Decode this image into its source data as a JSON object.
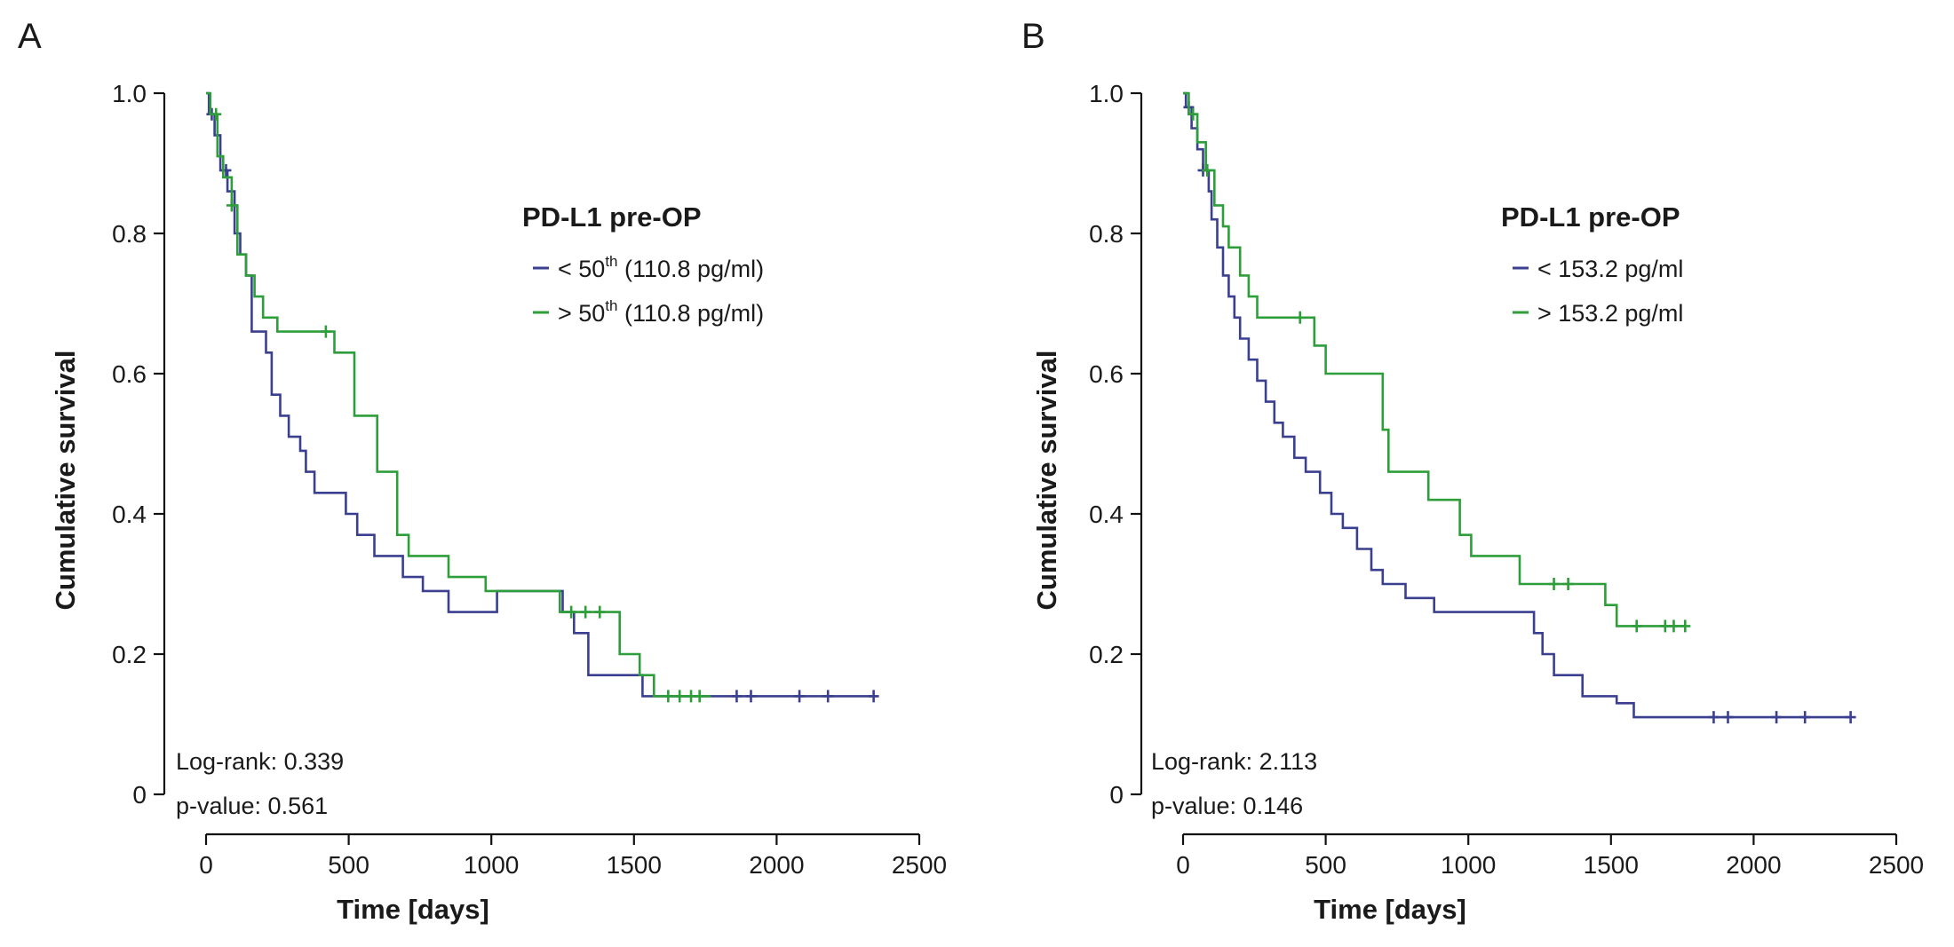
{
  "chart_data": [
    {
      "type": "line",
      "panel_label": "A",
      "ylabel": "Cumulative survival",
      "xlabel": "Time [days]",
      "xlim": [
        0,
        2500
      ],
      "ylim": [
        0,
        1.0
      ],
      "x_ticks": [
        0,
        500,
        1000,
        1500,
        2000,
        2500
      ],
      "y_ticks": [
        {
          "value": 0,
          "label": "0"
        },
        {
          "value": 0.2,
          "label": "0.2"
        },
        {
          "value": 0.4,
          "label": "0.4"
        },
        {
          "value": 0.6,
          "label": "0.6"
        },
        {
          "value": 0.8,
          "label": "0.8"
        },
        {
          "value": 1.0,
          "label": "1.0"
        }
      ],
      "legend": {
        "title": "PD-L1 pre-OP",
        "placement": "top-right"
      },
      "stats": {
        "log_rank": "Log-rank: 0.339",
        "p_value": "p-value: 0.561"
      },
      "series": [
        {
          "name": "low",
          "legend_main": "< 50",
          "legend_sup": "th",
          "legend_rest": " (110.8 pg/ml)",
          "color": "#3a3f8f",
          "steps": [
            [
              0,
              1.0
            ],
            [
              10,
              0.97
            ],
            [
              30,
              0.94
            ],
            [
              50,
              0.89
            ],
            [
              75,
              0.86
            ],
            [
              100,
              0.8
            ],
            [
              120,
              0.77
            ],
            [
              140,
              0.74
            ],
            [
              160,
              0.66
            ],
            [
              210,
              0.63
            ],
            [
              230,
              0.57
            ],
            [
              260,
              0.54
            ],
            [
              290,
              0.51
            ],
            [
              330,
              0.49
            ],
            [
              350,
              0.46
            ],
            [
              380,
              0.43
            ],
            [
              490,
              0.4
            ],
            [
              530,
              0.37
            ],
            [
              590,
              0.34
            ],
            [
              690,
              0.31
            ],
            [
              760,
              0.29
            ],
            [
              850,
              0.26
            ],
            [
              1000,
              0.26
            ],
            [
              1020,
              0.29
            ],
            [
              1250,
              0.26
            ],
            [
              1290,
              0.23
            ],
            [
              1340,
              0.17
            ],
            [
              1460,
              0.17
            ],
            [
              1530,
              0.14
            ],
            [
              2350,
              0.14
            ]
          ],
          "censored": [
            [
              20,
              0.97
            ],
            [
              70,
              0.89
            ],
            [
              1860,
              0.14
            ],
            [
              1910,
              0.14
            ],
            [
              2080,
              0.14
            ],
            [
              2180,
              0.14
            ],
            [
              2340,
              0.14
            ]
          ]
        },
        {
          "name": "high",
          "legend_main": "> 50",
          "legend_sup": "th",
          "legend_rest": " (110.8 pg/ml)",
          "color": "#2e9e3a",
          "steps": [
            [
              0,
              1.0
            ],
            [
              15,
              0.97
            ],
            [
              40,
              0.91
            ],
            [
              60,
              0.88
            ],
            [
              90,
              0.84
            ],
            [
              110,
              0.77
            ],
            [
              140,
              0.74
            ],
            [
              170,
              0.71
            ],
            [
              200,
              0.68
            ],
            [
              250,
              0.66
            ],
            [
              430,
              0.66
            ],
            [
              450,
              0.63
            ],
            [
              520,
              0.54
            ],
            [
              600,
              0.46
            ],
            [
              670,
              0.37
            ],
            [
              710,
              0.34
            ],
            [
              850,
              0.31
            ],
            [
              980,
              0.29
            ],
            [
              1200,
              0.29
            ],
            [
              1240,
              0.26
            ],
            [
              1400,
              0.26
            ],
            [
              1450,
              0.2
            ],
            [
              1520,
              0.17
            ],
            [
              1570,
              0.14
            ],
            [
              1770,
              0.14
            ]
          ],
          "censored": [
            [
              35,
              0.97
            ],
            [
              90,
              0.84
            ],
            [
              420,
              0.66
            ],
            [
              1280,
              0.26
            ],
            [
              1330,
              0.26
            ],
            [
              1380,
              0.26
            ],
            [
              1620,
              0.14
            ],
            [
              1660,
              0.14
            ],
            [
              1700,
              0.14
            ],
            [
              1730,
              0.14
            ]
          ]
        }
      ]
    },
    {
      "type": "line",
      "panel_label": "B",
      "ylabel": "Cumulative survival",
      "xlabel": "Time [days]",
      "xlim": [
        0,
        2500
      ],
      "ylim": [
        0,
        1.0
      ],
      "x_ticks": [
        0,
        500,
        1000,
        1500,
        2000,
        2500
      ],
      "y_ticks": [
        {
          "value": 0,
          "label": "0"
        },
        {
          "value": 0.2,
          "label": "0.2"
        },
        {
          "value": 0.4,
          "label": "0.4"
        },
        {
          "value": 0.6,
          "label": "0.6"
        },
        {
          "value": 0.8,
          "label": "0.8"
        },
        {
          "value": 1.0,
          "label": "1.0"
        }
      ],
      "legend": {
        "title": "PD-L1 pre-OP",
        "placement": "top-right"
      },
      "stats": {
        "log_rank": "Log-rank: 2.113",
        "p_value": "p-value: 0.146"
      },
      "series": [
        {
          "name": "low",
          "legend_main": "< 153.2 pg/ml",
          "legend_sup": "",
          "legend_rest": "",
          "color": "#3a3f8f",
          "steps": [
            [
              0,
              1.0
            ],
            [
              10,
              0.98
            ],
            [
              30,
              0.95
            ],
            [
              50,
              0.92
            ],
            [
              70,
              0.89
            ],
            [
              90,
              0.86
            ],
            [
              100,
              0.82
            ],
            [
              120,
              0.78
            ],
            [
              140,
              0.74
            ],
            [
              160,
              0.71
            ],
            [
              180,
              0.68
            ],
            [
              200,
              0.65
            ],
            [
              230,
              0.62
            ],
            [
              260,
              0.59
            ],
            [
              290,
              0.56
            ],
            [
              320,
              0.53
            ],
            [
              350,
              0.51
            ],
            [
              390,
              0.48
            ],
            [
              430,
              0.46
            ],
            [
              480,
              0.43
            ],
            [
              520,
              0.4
            ],
            [
              560,
              0.38
            ],
            [
              610,
              0.35
            ],
            [
              660,
              0.32
            ],
            [
              700,
              0.3
            ],
            [
              780,
              0.28
            ],
            [
              880,
              0.26
            ],
            [
              1000,
              0.26
            ],
            [
              1230,
              0.23
            ],
            [
              1260,
              0.2
            ],
            [
              1300,
              0.17
            ],
            [
              1400,
              0.14
            ],
            [
              1480,
              0.14
            ],
            [
              1520,
              0.13
            ],
            [
              1580,
              0.11
            ],
            [
              2340,
              0.11
            ]
          ],
          "censored": [
            [
              20,
              0.98
            ],
            [
              70,
              0.89
            ],
            [
              1860,
              0.11
            ],
            [
              1910,
              0.11
            ],
            [
              2080,
              0.11
            ],
            [
              2180,
              0.11
            ],
            [
              2340,
              0.11
            ]
          ]
        },
        {
          "name": "high",
          "legend_main": "> 153.2 pg/ml",
          "legend_sup": "",
          "legend_rest": "",
          "color": "#2e9e3a",
          "steps": [
            [
              0,
              1.0
            ],
            [
              20,
              0.97
            ],
            [
              50,
              0.93
            ],
            [
              80,
              0.89
            ],
            [
              110,
              0.84
            ],
            [
              140,
              0.81
            ],
            [
              160,
              0.78
            ],
            [
              200,
              0.74
            ],
            [
              230,
              0.71
            ],
            [
              260,
              0.68
            ],
            [
              440,
              0.68
            ],
            [
              460,
              0.64
            ],
            [
              500,
              0.6
            ],
            [
              700,
              0.52
            ],
            [
              720,
              0.46
            ],
            [
              860,
              0.42
            ],
            [
              970,
              0.37
            ],
            [
              1010,
              0.34
            ],
            [
              1180,
              0.3
            ],
            [
              1330,
              0.3
            ],
            [
              1480,
              0.27
            ],
            [
              1520,
              0.24
            ],
            [
              1760,
              0.24
            ]
          ],
          "censored": [
            [
              35,
              0.97
            ],
            [
              85,
              0.89
            ],
            [
              410,
              0.68
            ],
            [
              1300,
              0.3
            ],
            [
              1350,
              0.3
            ],
            [
              1590,
              0.24
            ],
            [
              1690,
              0.24
            ],
            [
              1720,
              0.24
            ],
            [
              1760,
              0.24
            ]
          ]
        }
      ]
    }
  ]
}
